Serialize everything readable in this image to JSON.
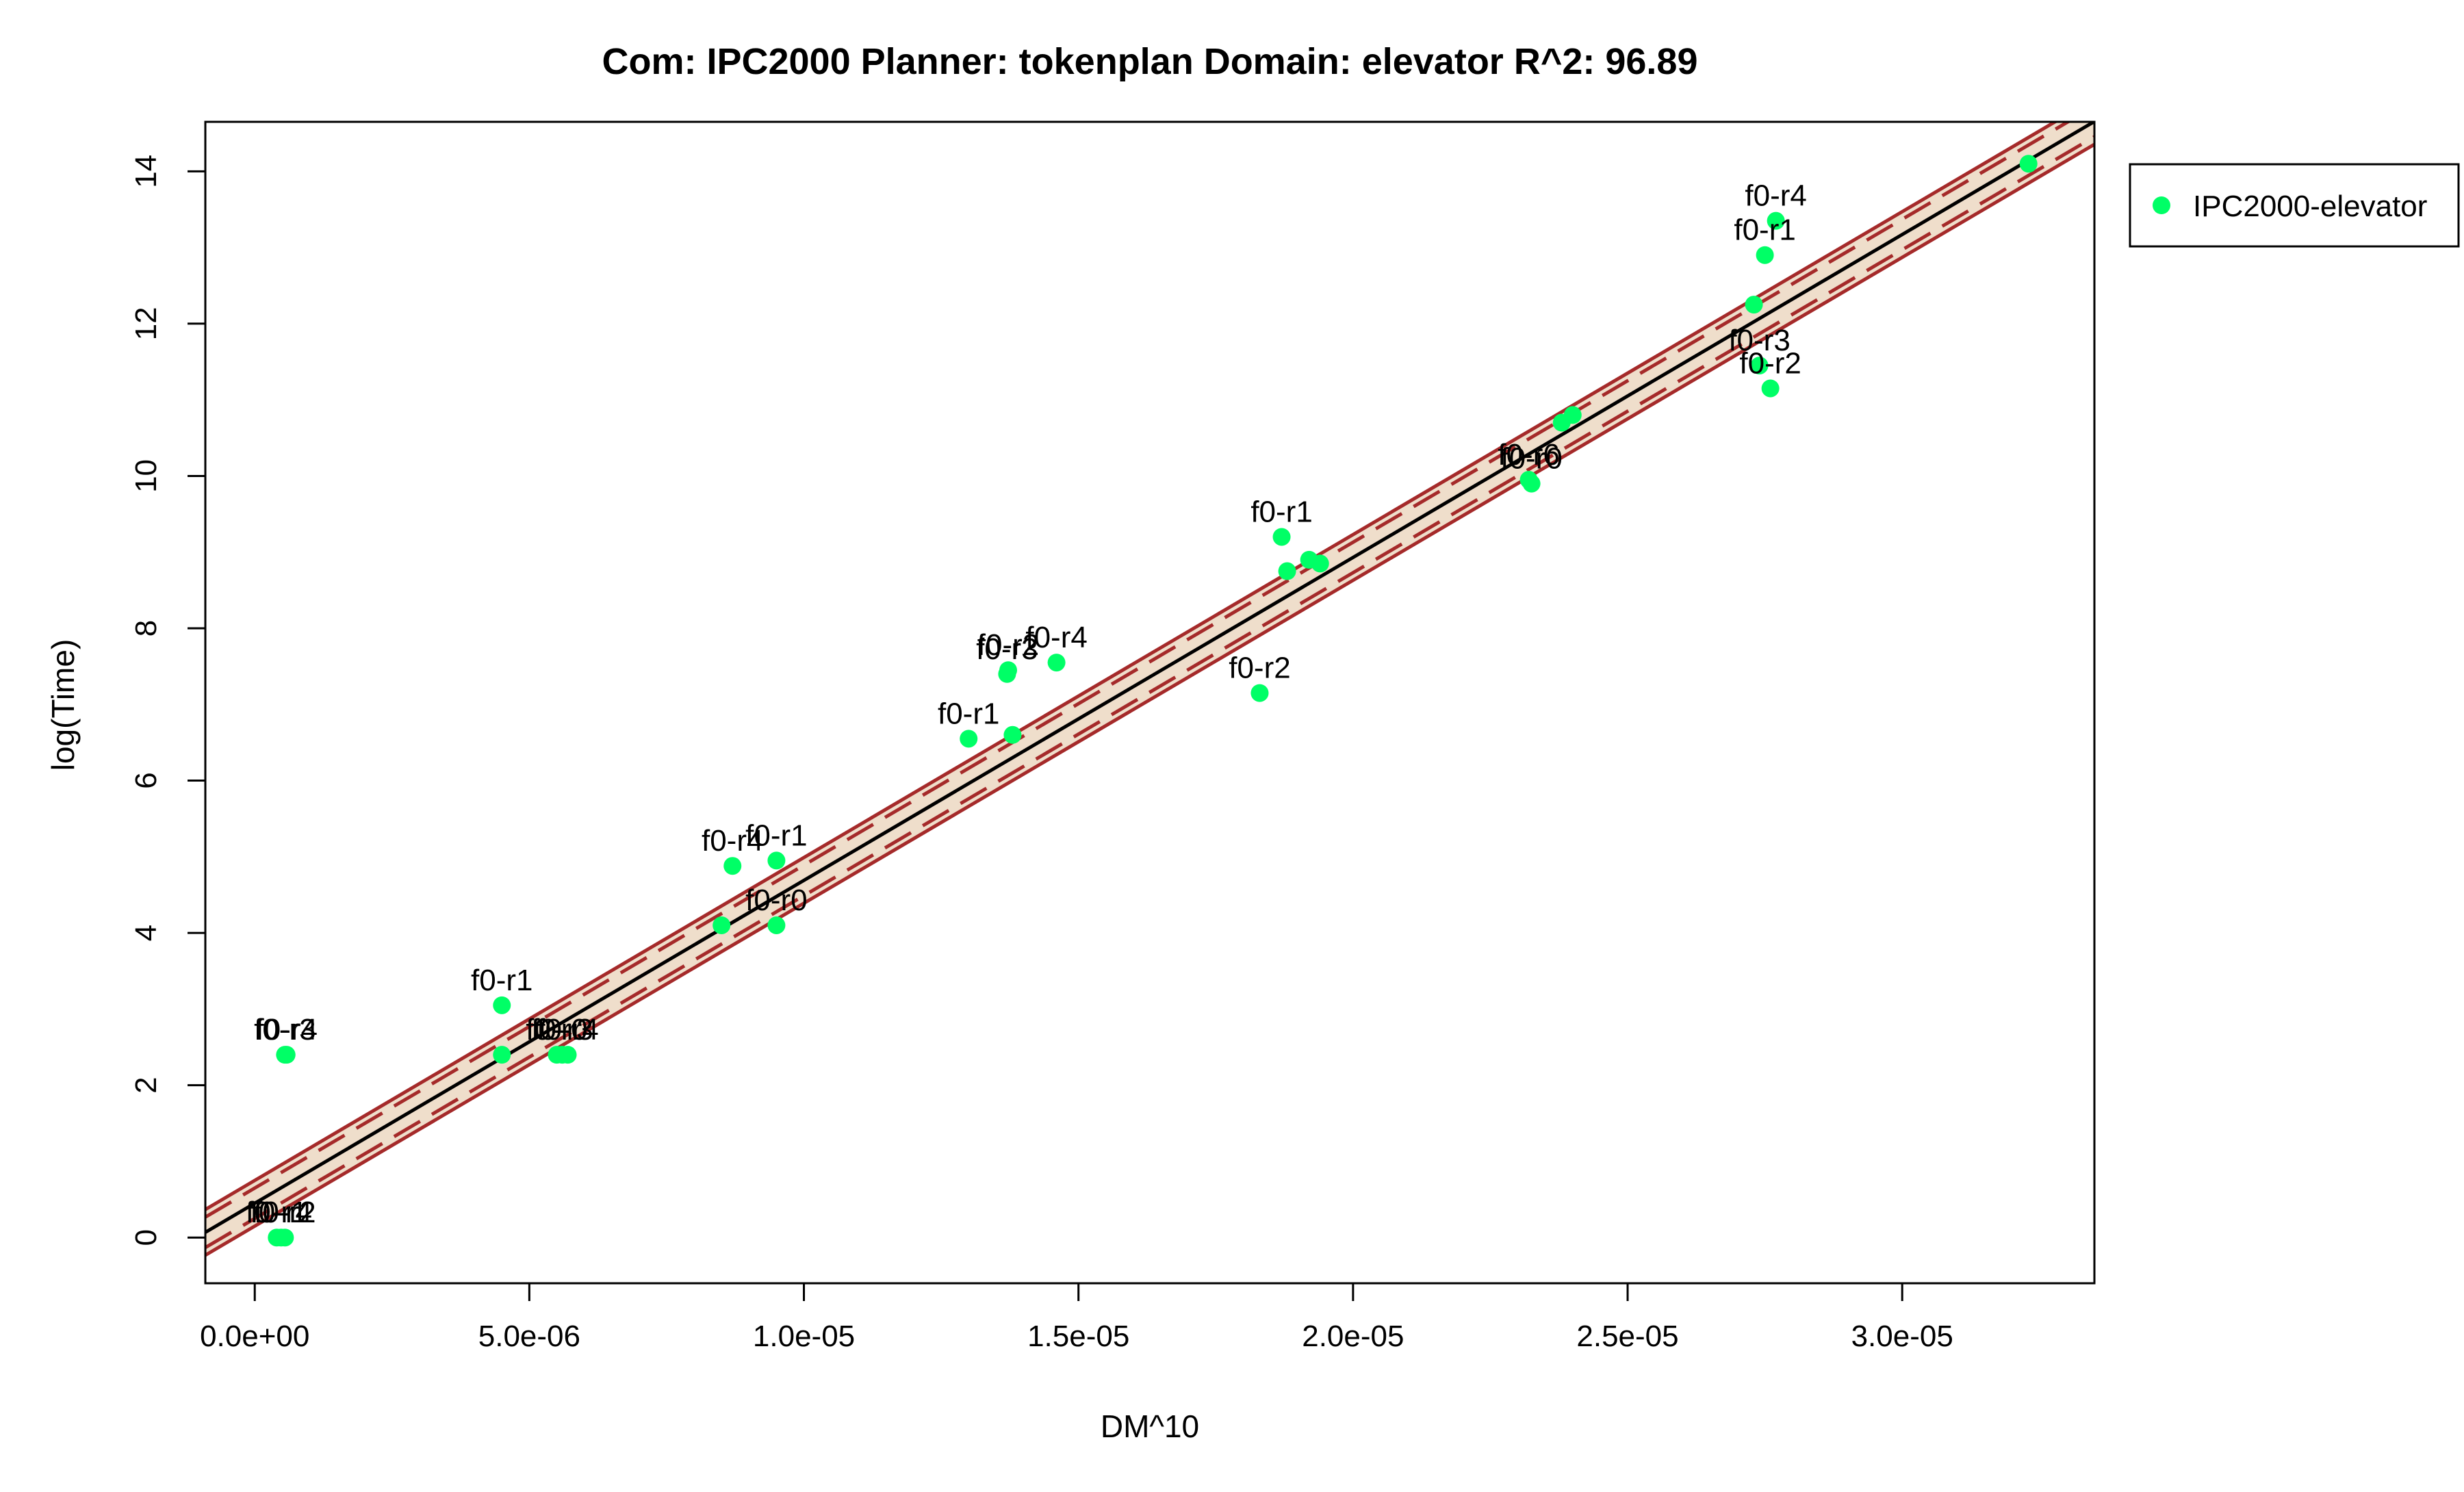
{
  "chart_data": {
    "type": "scatter",
    "title": "Com: IPC2000 Planner: tokenplan Domain: elevator R^2: 96.89",
    "xlabel": "DM^10",
    "ylabel": "log(Time)",
    "xlim": [
      -9e-07,
      3.35e-05
    ],
    "ylim": [
      -0.6,
      14.65
    ],
    "x_ticks": [
      {
        "value": 0,
        "label": "0.0e+00"
      },
      {
        "value": 5e-06,
        "label": "5.0e-06"
      },
      {
        "value": 1e-05,
        "label": "1.0e-05"
      },
      {
        "value": 1.5e-05,
        "label": "1.5e-05"
      },
      {
        "value": 2e-05,
        "label": "2.0e-05"
      },
      {
        "value": 2.5e-05,
        "label": "2.5e-05"
      },
      {
        "value": 3e-05,
        "label": "3.0e-05"
      }
    ],
    "y_ticks": [
      {
        "value": 0,
        "label": "0"
      },
      {
        "value": 2,
        "label": "2"
      },
      {
        "value": 4,
        "label": "4"
      },
      {
        "value": 6,
        "label": "6"
      },
      {
        "value": 8,
        "label": "8"
      },
      {
        "value": 10,
        "label": "10"
      },
      {
        "value": 12,
        "label": "12"
      },
      {
        "value": 14,
        "label": "14"
      }
    ],
    "grid": false,
    "legend": {
      "position": "right",
      "entries": [
        {
          "label": "IPC2000-elevator",
          "color": "#00ff66"
        }
      ]
    },
    "colors": {
      "points": "#00ff66",
      "fit_line": "#000000",
      "band_fill": "#efdecb",
      "band_line": "#a52a2a"
    },
    "fit": {
      "intercept": 0.45,
      "slope": 424000
    },
    "confidence_band": {
      "offset_low": 0.2,
      "offset_high": 0.2
    },
    "prediction_band": {
      "offset_low": 0.3,
      "offset_high": 0.3
    },
    "series": [
      {
        "name": "IPC2000-elevator",
        "points": [
          {
            "x": 4e-07,
            "y": 0.0,
            "label": "f0-r1"
          },
          {
            "x": 4.8e-07,
            "y": 0.0,
            "label": "f0-r4"
          },
          {
            "x": 5.5e-07,
            "y": 0.0,
            "label": "f0-r2"
          },
          {
            "x": 5.5e-07,
            "y": 2.4,
            "label": "f0-r3"
          },
          {
            "x": 5.8e-07,
            "y": 2.4,
            "label": "f0-r4"
          },
          {
            "x": 4.5e-06,
            "y": 3.05,
            "label": "f0-r1"
          },
          {
            "x": 4.5e-06,
            "y": 2.4,
            "label": ""
          },
          {
            "x": 5.5e-06,
            "y": 2.4,
            "label": "f0-r0"
          },
          {
            "x": 5.6e-06,
            "y": 2.4,
            "label": "f0-r3"
          },
          {
            "x": 5.7e-06,
            "y": 2.4,
            "label": "f0-r4"
          },
          {
            "x": 8.7e-06,
            "y": 4.88,
            "label": "f0-r4"
          },
          {
            "x": 9.5e-06,
            "y": 4.95,
            "label": "f0-r1"
          },
          {
            "x": 8.5e-06,
            "y": 4.1,
            "label": ""
          },
          {
            "x": 9.5e-06,
            "y": 4.1,
            "label": "f0-r0"
          },
          {
            "x": 1.3e-05,
            "y": 6.55,
            "label": "f0-r1"
          },
          {
            "x": 1.38e-05,
            "y": 6.6,
            "label": ""
          },
          {
            "x": 1.37e-05,
            "y": 7.4,
            "label": "f0-r3"
          },
          {
            "x": 1.372e-05,
            "y": 7.45,
            "label": "f0-r2"
          },
          {
            "x": 1.46e-05,
            "y": 7.55,
            "label": "f0-r4"
          },
          {
            "x": 1.83e-05,
            "y": 7.15,
            "label": "f0-r2"
          },
          {
            "x": 1.88e-05,
            "y": 8.75,
            "label": ""
          },
          {
            "x": 1.87e-05,
            "y": 9.2,
            "label": "f0-r1"
          },
          {
            "x": 1.92e-05,
            "y": 8.9,
            "label": ""
          },
          {
            "x": 1.94e-05,
            "y": 8.85,
            "label": ""
          },
          {
            "x": 2.32e-05,
            "y": 9.95,
            "label": "f0-r6"
          },
          {
            "x": 2.325e-05,
            "y": 9.9,
            "label": "f0-r0"
          },
          {
            "x": 2.38e-05,
            "y": 10.7,
            "label": ""
          },
          {
            "x": 2.4e-05,
            "y": 10.8,
            "label": ""
          },
          {
            "x": 2.73e-05,
            "y": 12.25,
            "label": ""
          },
          {
            "x": 2.74e-05,
            "y": 11.45,
            "label": "f0-r3"
          },
          {
            "x": 2.75e-05,
            "y": 12.9,
            "label": "f0-r1"
          },
          {
            "x": 2.77e-05,
            "y": 13.35,
            "label": "f0-r4"
          },
          {
            "x": 2.76e-05,
            "y": 11.15,
            "label": "f0-r2"
          },
          {
            "x": 3.23e-05,
            "y": 14.1,
            "label": ""
          }
        ]
      }
    ]
  }
}
